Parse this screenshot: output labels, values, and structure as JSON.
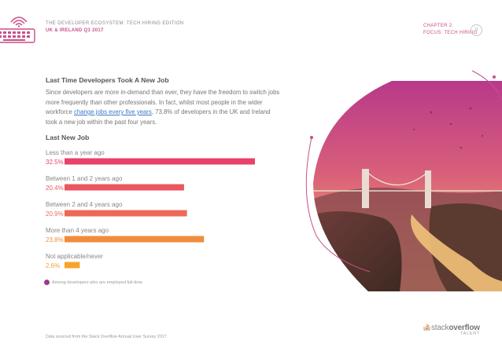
{
  "header": {
    "report_title": "THE DEVELOPER ECOSYSTEM: TECH HIRING EDITION",
    "region": "UK & IRELAND Q1 2017",
    "chapter": "CHAPTER 2",
    "focus": "FOCUS: TECH HIRING",
    "page_number": "11"
  },
  "section": {
    "title": "Last Time Developers Took A New Job",
    "paragraph_before": "Since developers are more in-demand than ever, they have the freedom to switch jobs more frequently than other professionals. In fact, whilst most people in the wider workforce ",
    "paragraph_link": "change jobs every five years",
    "paragraph_after": ", 73.8% of developers in the UK and Ireland took a new job within the past four years."
  },
  "chart_data": {
    "type": "bar",
    "orientation": "horizontal",
    "title": "Last New Job",
    "categories": [
      "Less than a year ago",
      "Between 1 and 2 years ago",
      "Between 2 and 4 years ago",
      "More than 4 years ago",
      "Not applicable/never"
    ],
    "values": [
      32.5,
      20.4,
      20.9,
      23.8,
      2.6
    ],
    "value_labels": [
      "32.5%",
      "20.4%",
      "20.9%",
      "23.8%",
      "2.6%"
    ],
    "bar_colors": [
      "#e8416b",
      "#eb5660",
      "#ee6858",
      "#f18c3c",
      "#f4a52c"
    ],
    "xlim": [
      0,
      32.5
    ],
    "note": "Among developers who are employed full-time"
  },
  "footer": {
    "source": "Data sourced from the Stack Overflow Annual User Survey 2017",
    "logo_stack": "stack",
    "logo_overflow": "overflow",
    "logo_sub": "TALENT"
  },
  "colors": {
    "accent": "#c94f8a",
    "note_dot": "#9b3a8e",
    "link": "#3b78c4"
  }
}
